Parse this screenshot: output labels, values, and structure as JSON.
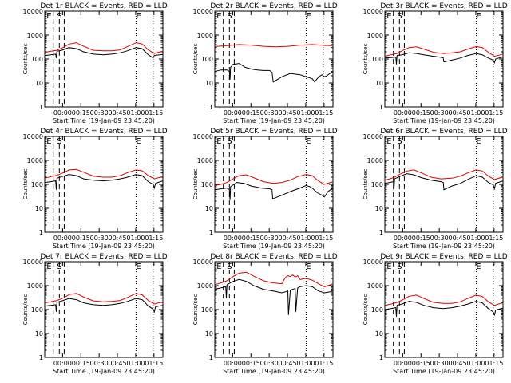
{
  "figure": {
    "background": "#ffffff",
    "colors": {
      "events": "#000000",
      "lld": "#e00000",
      "axes": "#000000"
    }
  },
  "shared": {
    "xlabel": "Start Time (19-Jan-09 23:45:20)",
    "ylabel": "Counts/sec",
    "yticks": [
      "1",
      "10",
      "100",
      "1000",
      "10000"
    ],
    "xticks": [
      "00:00",
      "00:15",
      "00:30",
      "00:45",
      "01:00",
      "01:15"
    ],
    "marker_labels": {
      "S": "S",
      "E": "E"
    }
  },
  "chart_data": [
    {
      "type": "line",
      "title": "Det 1r BLACK = Events, RED = LLD",
      "yscale": "log",
      "ylim": [
        1,
        10000
      ],
      "xlim_min_from_start": [
        0,
        97
      ],
      "series": [
        {
          "name": "Events",
          "color": "#000000",
          "x": [
            0,
            5,
            9,
            9.5,
            10,
            14,
            20,
            26,
            32,
            40,
            48,
            55,
            62,
            68,
            75,
            80,
            85,
            89,
            90,
            91,
            95,
            97
          ],
          "y": [
            140,
            150,
            160,
            110,
            210,
            230,
            300,
            270,
            200,
            160,
            150,
            160,
            180,
            220,
            300,
            270,
            150,
            110,
            140,
            145,
            150,
            155
          ]
        },
        {
          "name": "LLD",
          "color": "#e00000",
          "x": [
            0,
            5,
            10,
            15,
            20,
            26,
            32,
            40,
            48,
            55,
            62,
            68,
            75,
            80,
            85,
            90,
            95,
            97
          ],
          "y": [
            190,
            210,
            230,
            300,
            420,
            480,
            340,
            230,
            220,
            220,
            240,
            330,
            480,
            420,
            240,
            170,
            200,
            210
          ]
        }
      ]
    },
    {
      "type": "line",
      "title": "Det 2r BLACK = Events, RED = LLD",
      "yscale": "log",
      "ylim": [
        1,
        10000
      ],
      "xlim_min_from_start": [
        0,
        97
      ],
      "series": [
        {
          "name": "Events",
          "color": "#000000",
          "x": [
            0,
            5,
            10,
            12,
            12.5,
            13,
            15,
            20,
            25,
            30,
            35,
            40,
            45,
            47,
            48,
            55,
            62,
            70,
            75,
            80,
            82,
            84,
            86,
            88,
            90,
            92,
            95,
            97
          ],
          "y": [
            30,
            35,
            35,
            30,
            14,
            45,
            60,
            65,
            45,
            38,
            35,
            33,
            33,
            28,
            11,
            18,
            25,
            22,
            18,
            15,
            11,
            15,
            19,
            22,
            18,
            20,
            26,
            30
          ]
        },
        {
          "name": "LLD",
          "color": "#e00000",
          "x": [
            0,
            10,
            20,
            30,
            40,
            50,
            60,
            70,
            80,
            90,
            97
          ],
          "y": [
            330,
            360,
            400,
            380,
            340,
            320,
            340,
            380,
            400,
            370,
            360
          ]
        }
      ]
    },
    {
      "type": "line",
      "title": "Det 3r BLACK = Events, RED = LLD",
      "yscale": "log",
      "ylim": [
        1,
        10000
      ],
      "xlim_min_from_start": [
        0,
        97
      ],
      "series": [
        {
          "name": "Events",
          "color": "#000000",
          "x": [
            0,
            5,
            9,
            9.5,
            10,
            14,
            20,
            26,
            32,
            40,
            45,
            48,
            48.5,
            55,
            62,
            68,
            75,
            80,
            85,
            89,
            90,
            91,
            95,
            97
          ],
          "y": [
            110,
            115,
            120,
            60,
            140,
            150,
            180,
            170,
            150,
            130,
            120,
            110,
            75,
            90,
            110,
            140,
            170,
            150,
            110,
            90,
            70,
            100,
            115,
            120
          ]
        },
        {
          "name": "LLD",
          "color": "#e00000",
          "x": [
            0,
            5,
            10,
            15,
            20,
            26,
            32,
            40,
            48,
            55,
            62,
            68,
            75,
            80,
            85,
            90,
            95,
            97
          ],
          "y": [
            130,
            150,
            170,
            230,
            300,
            320,
            260,
            190,
            170,
            180,
            200,
            260,
            330,
            300,
            190,
            130,
            150,
            160
          ]
        }
      ]
    },
    {
      "type": "line",
      "title": "Det 4r BLACK = Events, RED = LLD",
      "yscale": "log",
      "ylim": [
        1,
        10000
      ],
      "xlim_min_from_start": [
        0,
        97
      ],
      "series": [
        {
          "name": "Events",
          "color": "#000000",
          "x": [
            0,
            5,
            9,
            9.5,
            10,
            14,
            20,
            26,
            32,
            40,
            48,
            55,
            62,
            68,
            75,
            80,
            85,
            89,
            90,
            91,
            95,
            97
          ],
          "y": [
            120,
            130,
            140,
            60,
            180,
            210,
            260,
            230,
            170,
            150,
            140,
            150,
            170,
            200,
            260,
            230,
            130,
            100,
            70,
            110,
            130,
            140
          ]
        },
        {
          "name": "LLD",
          "color": "#e00000",
          "x": [
            0,
            5,
            10,
            15,
            20,
            26,
            32,
            40,
            48,
            55,
            62,
            68,
            75,
            80,
            85,
            90,
            95,
            97
          ],
          "y": [
            180,
            210,
            240,
            300,
            400,
            420,
            320,
            220,
            200,
            200,
            230,
            310,
            400,
            370,
            230,
            170,
            200,
            210
          ]
        }
      ]
    },
    {
      "type": "line",
      "title": "Det 5r BLACK = Events, RED = LLD",
      "yscale": "log",
      "ylim": [
        1,
        10000
      ],
      "xlim_min_from_start": [
        0,
        97
      ],
      "series": [
        {
          "name": "Events",
          "color": "#000000",
          "x": [
            0,
            5,
            10,
            12,
            12.5,
            13,
            18,
            24,
            30,
            38,
            45,
            47,
            47.5,
            55,
            62,
            70,
            75,
            78,
            80,
            84,
            88,
            90,
            93,
            95,
            97
          ],
          "y": [
            60,
            65,
            70,
            60,
            22,
            80,
            120,
            110,
            85,
            70,
            65,
            60,
            25,
            35,
            50,
            70,
            90,
            80,
            70,
            45,
            35,
            30,
            50,
            60,
            70
          ]
        },
        {
          "name": "LLD",
          "color": "#e00000",
          "x": [
            0,
            5,
            10,
            15,
            20,
            26,
            32,
            40,
            48,
            55,
            62,
            68,
            75,
            80,
            85,
            90,
            95,
            97
          ],
          "y": [
            90,
            100,
            120,
            170,
            230,
            250,
            190,
            130,
            110,
            120,
            150,
            210,
            260,
            230,
            140,
            100,
            120,
            130
          ]
        }
      ]
    },
    {
      "type": "line",
      "title": "Det 6r BLACK = Events, RED = LLD",
      "yscale": "log",
      "ylim": [
        1,
        10000
      ],
      "xlim_min_from_start": [
        0,
        97
      ],
      "series": [
        {
          "name": "Events",
          "color": "#000000",
          "x": [
            0,
            4,
            7,
            7.5,
            8,
            12,
            18,
            24,
            30,
            38,
            46,
            48,
            48.5,
            55,
            62,
            68,
            75,
            80,
            85,
            89,
            90,
            91,
            95,
            97
          ],
          "y": [
            110,
            120,
            130,
            55,
            170,
            210,
            280,
            250,
            190,
            150,
            130,
            120,
            60,
            85,
            110,
            160,
            230,
            200,
            120,
            95,
            65,
            110,
            130,
            140
          ]
        },
        {
          "name": "LLD",
          "color": "#e00000",
          "x": [
            0,
            4,
            8,
            12,
            18,
            24,
            30,
            38,
            46,
            55,
            62,
            68,
            75,
            80,
            85,
            90,
            95,
            97
          ],
          "y": [
            150,
            170,
            200,
            260,
            360,
            400,
            300,
            200,
            170,
            180,
            220,
            300,
            400,
            360,
            220,
            160,
            190,
            200
          ]
        }
      ]
    },
    {
      "type": "line",
      "title": "Det 7r BLACK = Events, RED = LLD",
      "yscale": "log",
      "ylim": [
        1,
        10000
      ],
      "xlim_min_from_start": [
        0,
        97
      ],
      "series": [
        {
          "name": "Events",
          "color": "#000000",
          "x": [
            0,
            5,
            9,
            9.5,
            10,
            14,
            20,
            26,
            32,
            40,
            48,
            55,
            62,
            68,
            75,
            80,
            85,
            89,
            90,
            91,
            95,
            97
          ],
          "y": [
            140,
            150,
            160,
            80,
            200,
            230,
            290,
            260,
            190,
            160,
            150,
            160,
            180,
            220,
            290,
            260,
            140,
            105,
            80,
            130,
            145,
            150
          ]
        },
        {
          "name": "LLD",
          "color": "#e00000",
          "x": [
            0,
            5,
            10,
            15,
            20,
            26,
            32,
            40,
            48,
            55,
            62,
            68,
            75,
            80,
            85,
            90,
            95,
            97
          ],
          "y": [
            190,
            210,
            240,
            300,
            420,
            470,
            330,
            230,
            210,
            220,
            240,
            320,
            470,
            410,
            240,
            170,
            200,
            210
          ]
        }
      ]
    },
    {
      "type": "line",
      "title": "Det 8r BLACK = Events, RED = LLD",
      "yscale": "log",
      "ylim": [
        1,
        10000
      ],
      "xlim_min_from_start": [
        0,
        97
      ],
      "series": [
        {
          "name": "Events",
          "color": "#000000",
          "x": [
            0,
            5,
            9,
            9.5,
            10,
            15,
            20,
            26,
            32,
            40,
            48,
            55,
            58,
            60,
            60.5,
            62,
            64,
            66,
            66.5,
            68,
            70,
            75,
            80,
            85,
            90,
            95,
            97
          ],
          "y": [
            700,
            800,
            900,
            300,
            1100,
            1500,
            1800,
            1500,
            1000,
            700,
            600,
            500,
            550,
            600,
            60,
            650,
            700,
            750,
            80,
            800,
            900,
            1000,
            900,
            600,
            500,
            550,
            600
          ]
        },
        {
          "name": "LLD",
          "color": "#e00000",
          "x": [
            0,
            5,
            10,
            15,
            20,
            26,
            32,
            40,
            48,
            55,
            58,
            60,
            62,
            64,
            66,
            68,
            70,
            75,
            80,
            85,
            90,
            95,
            97
          ],
          "y": [
            1100,
            1300,
            1600,
            2400,
            3300,
            3600,
            2500,
            1600,
            1300,
            1200,
            2200,
            2600,
            2400,
            2800,
            2300,
            2600,
            1800,
            2000,
            1700,
            1200,
            900,
            1100,
            1200
          ]
        }
      ]
    },
    {
      "type": "line",
      "title": "Det 9r BLACK = Events, RED = LLD",
      "yscale": "log",
      "ylim": [
        1,
        10000
      ],
      "xlim_min_from_start": [
        0,
        97
      ],
      "series": [
        {
          "name": "Events",
          "color": "#000000",
          "x": [
            0,
            5,
            9,
            9.5,
            10,
            14,
            20,
            26,
            32,
            40,
            48,
            55,
            62,
            68,
            75,
            80,
            85,
            89,
            90,
            91,
            95,
            97
          ],
          "y": [
            100,
            110,
            120,
            50,
            150,
            170,
            220,
            200,
            150,
            120,
            110,
            120,
            140,
            170,
            220,
            190,
            110,
            80,
            60,
            95,
            110,
            115
          ]
        },
        {
          "name": "LLD",
          "color": "#e00000",
          "x": [
            0,
            5,
            10,
            15,
            20,
            26,
            32,
            40,
            48,
            55,
            62,
            68,
            75,
            80,
            85,
            90,
            95,
            97
          ],
          "y": [
            150,
            170,
            200,
            260,
            360,
            400,
            290,
            200,
            180,
            180,
            210,
            290,
            400,
            350,
            210,
            150,
            180,
            190
          ]
        }
      ]
    }
  ]
}
